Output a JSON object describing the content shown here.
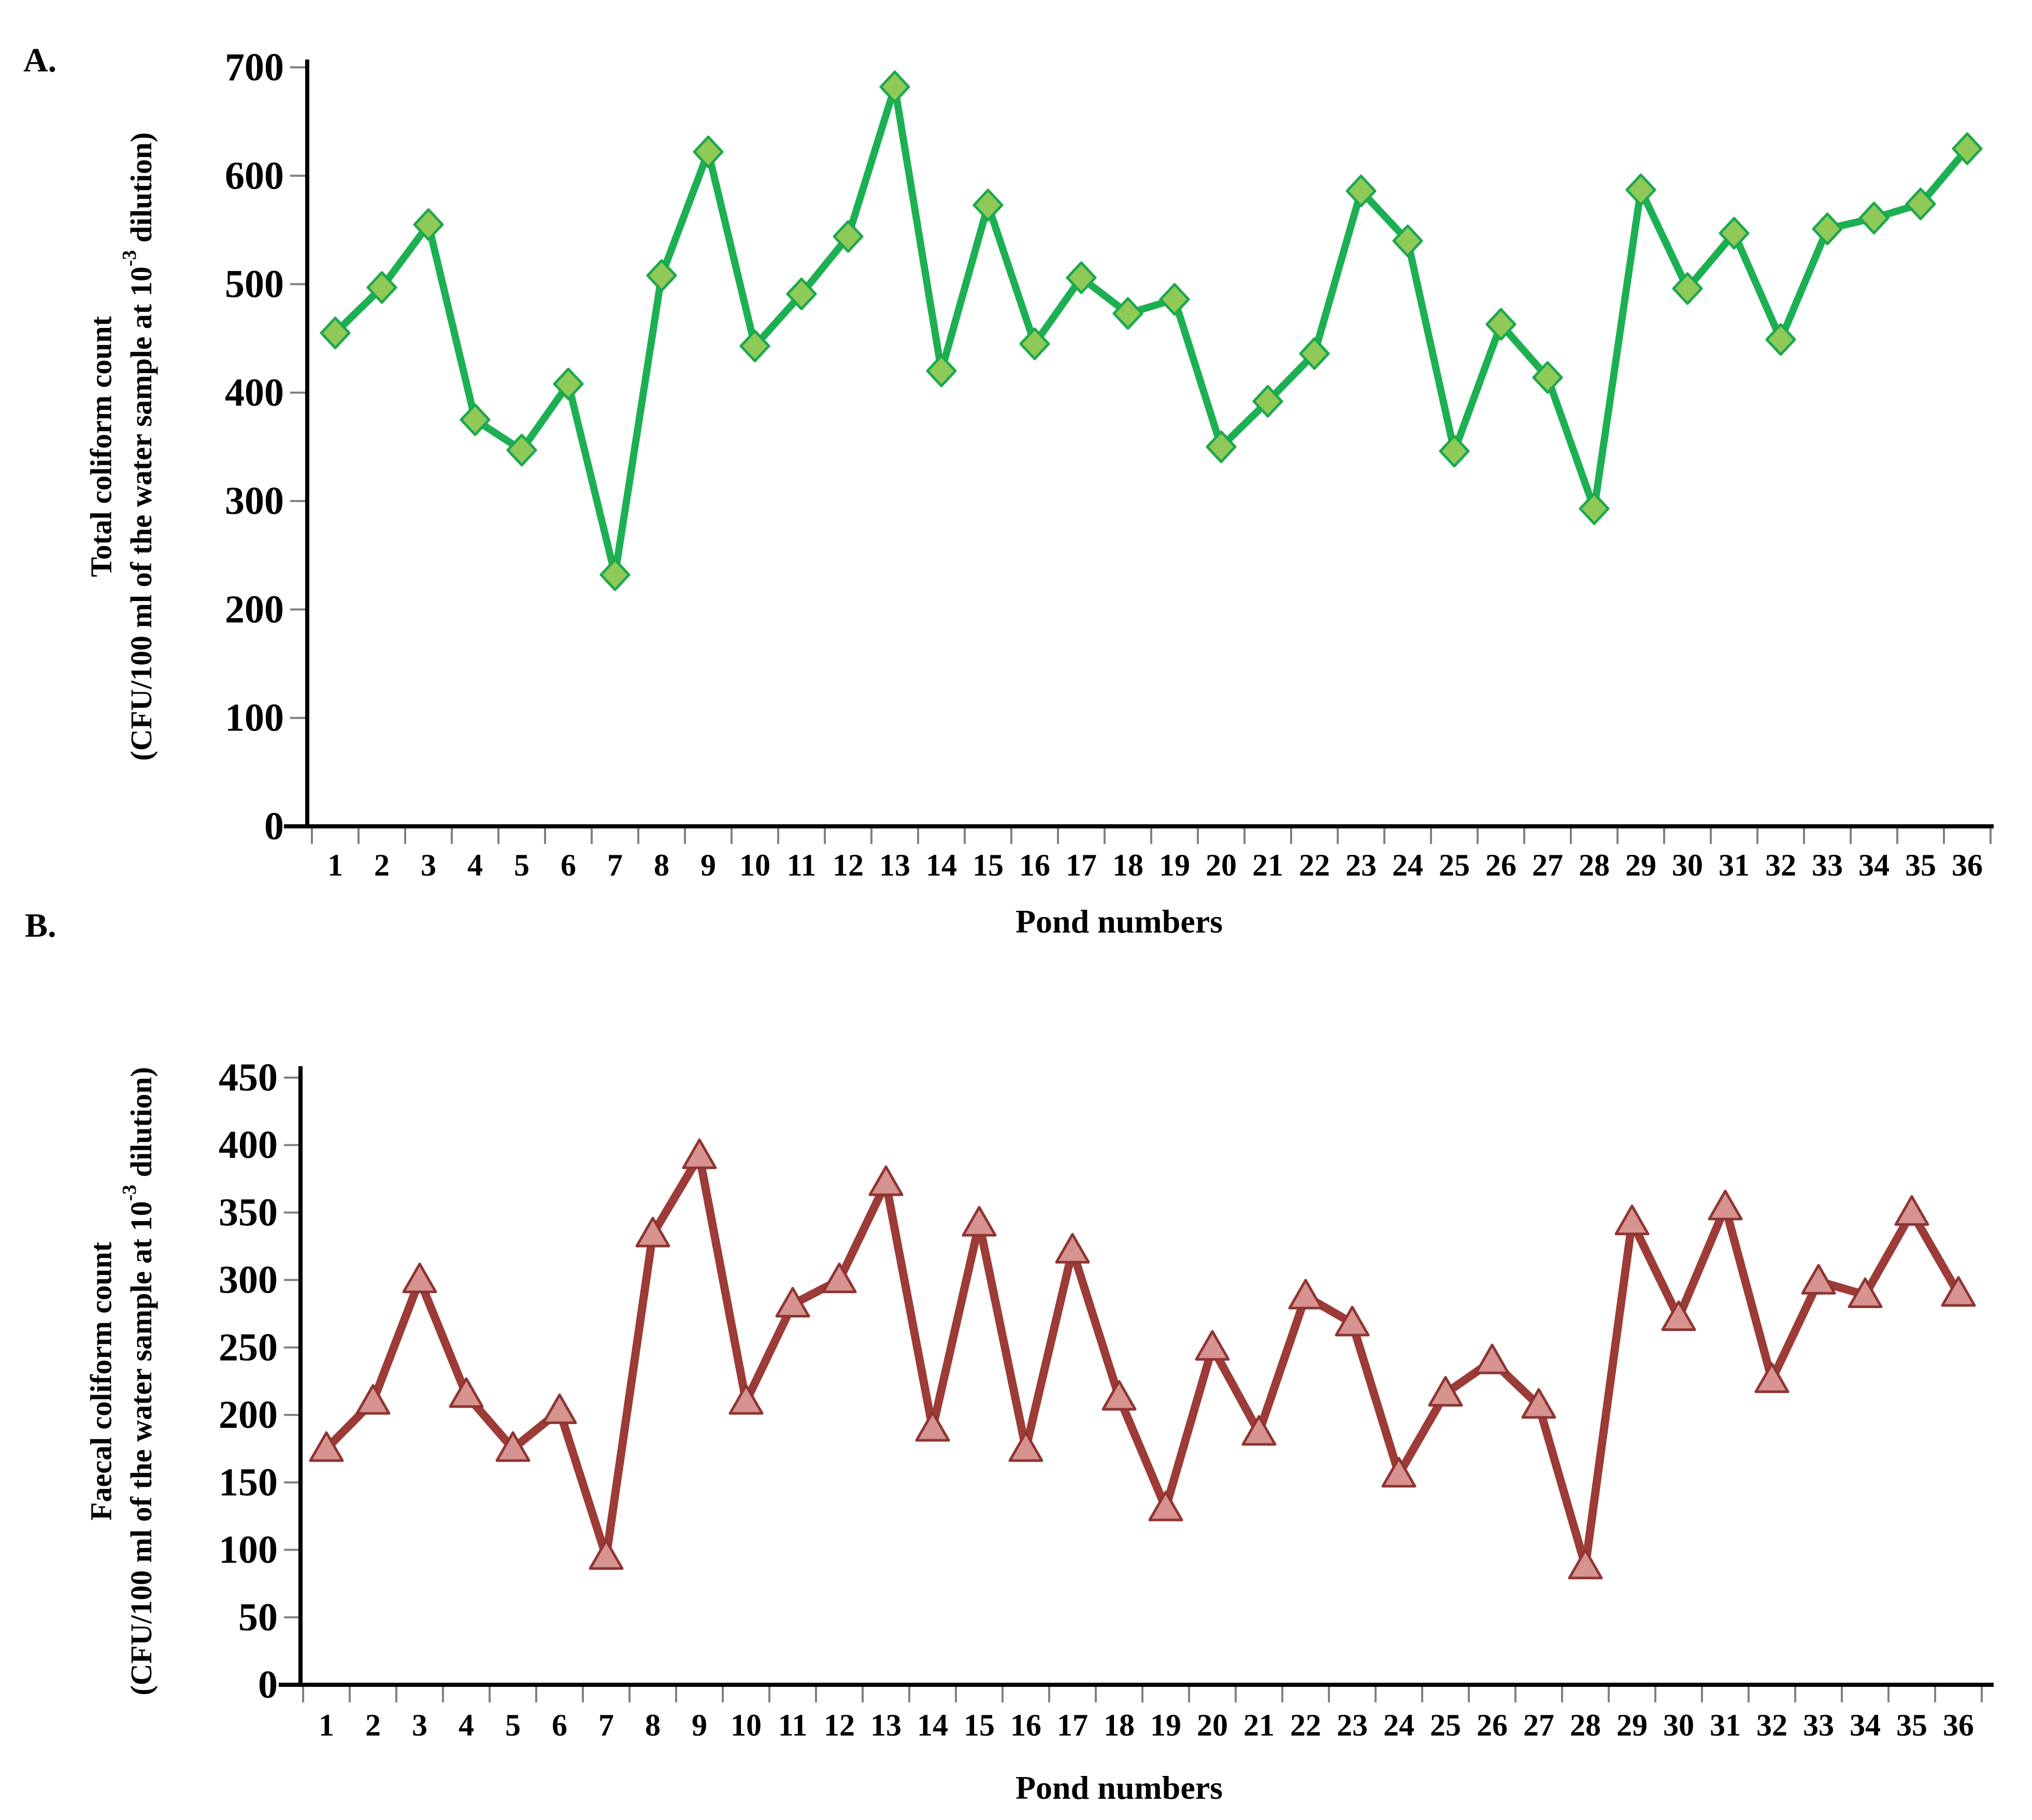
{
  "page": {
    "background": "#ffffff",
    "axis_color": "#000000",
    "tick_color": "#808080"
  },
  "chart_data": [
    {
      "type": "line",
      "panel_label": "A.",
      "series_name": "Total coliform count",
      "xlabel": "Pond numbers",
      "ylabel_line1": "Total coliform count",
      "ylabel_line2_prefix": "(CFU/100 ml of the water sample at 10",
      "ylabel_superscript": "-3",
      "ylabel_line2_suffix": " dilution)",
      "ylim": [
        0,
        700
      ],
      "ytick_step": 100,
      "ytick_labels": [
        "700",
        "600",
        "500",
        "400",
        "300",
        "200",
        "100",
        "0"
      ],
      "x_categories": [
        "1",
        "2",
        "3",
        "4",
        "5",
        "6",
        "7",
        "8",
        "9",
        "10",
        "11",
        "12",
        "13",
        "14",
        "15",
        "16",
        "17",
        "18",
        "19",
        "20",
        "21",
        "22",
        "23",
        "24",
        "25",
        "26",
        "27",
        "28",
        "29",
        "30",
        "31",
        "32",
        "33",
        "34",
        "35",
        "36"
      ],
      "values": [
        455,
        497,
        555,
        375,
        347,
        408,
        232,
        508,
        622,
        443,
        491,
        544,
        682,
        420,
        573,
        445,
        506,
        473,
        486,
        350,
        392,
        436,
        586,
        540,
        346,
        463,
        414,
        293,
        587,
        496,
        547,
        449,
        551,
        561,
        574,
        625
      ],
      "grid": false,
      "legend": "none",
      "line_color": "#1CB053",
      "marker": {
        "shape": "diamond",
        "fill": "#8FC957",
        "stroke": "#1CA84E"
      }
    },
    {
      "type": "line",
      "panel_label": "B.",
      "series_name": "Faecal coliform count",
      "xlabel": "Pond numbers",
      "ylabel_line1": "Faecal coliform count",
      "ylabel_line2_prefix": "(CFU/100 ml of the water sample at 10",
      "ylabel_superscript": "-3",
      "ylabel_line2_suffix": " dilution)",
      "ylim": [
        0,
        450
      ],
      "ytick_step": 50,
      "ytick_labels": [
        "450",
        "400",
        "350",
        "300",
        "250",
        "200",
        "150",
        "100",
        "50",
        "0"
      ],
      "x_categories": [
        "1",
        "2",
        "3",
        "4",
        "5",
        "6",
        "7",
        "8",
        "9",
        "10",
        "11",
        "12",
        "13",
        "14",
        "15",
        "16",
        "17",
        "18",
        "19",
        "20",
        "21",
        "22",
        "23",
        "24",
        "25",
        "26",
        "27",
        "28",
        "29",
        "30",
        "31",
        "32",
        "33",
        "34",
        "35",
        "36"
      ],
      "values": [
        175,
        210,
        300,
        215,
        175,
        203,
        95,
        334,
        392,
        210,
        282,
        300,
        372,
        190,
        342,
        175,
        322,
        213,
        131,
        250,
        187,
        288,
        268,
        156,
        216,
        240,
        207,
        88,
        343,
        272,
        354,
        226,
        299,
        289,
        350,
        290
      ],
      "grid": false,
      "legend": "none",
      "line_color": "#9C3B37",
      "marker": {
        "shape": "triangle",
        "fill": "#D69390",
        "stroke": "#8E3431"
      }
    }
  ]
}
